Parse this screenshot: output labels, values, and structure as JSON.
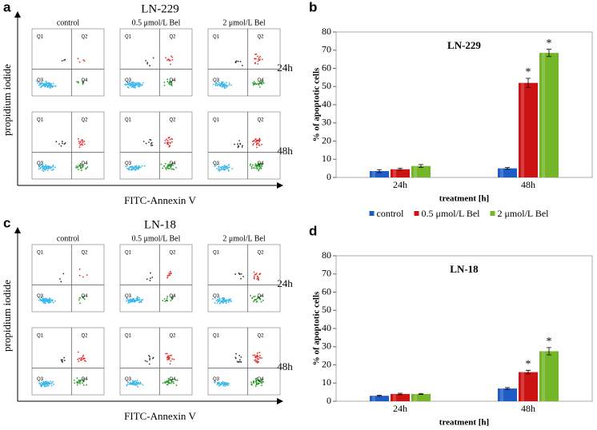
{
  "panels": [
    {
      "letter": "a",
      "title": "LN-229",
      "columns": [
        "control",
        "0.5 μmol/L Bel",
        "2 μmol/L Bel"
      ],
      "rows": [
        "24h",
        "48h"
      ],
      "y_label": "propidium iodide",
      "x_label": "FITC-Annexin V",
      "quadrants": [
        "Q1",
        "Q2",
        "Q3",
        "Q4"
      ]
    },
    {
      "letter": "c",
      "title": "LN-18",
      "columns": [
        "control",
        "0.5 μmol/L Bel",
        "2 μmol/L Bel"
      ],
      "rows": [
        "24h",
        "48h"
      ],
      "y_label": "propidium iodide",
      "x_label": "FITC-Annexin V",
      "quadrants": [
        "Q1",
        "Q2",
        "Q3",
        "Q4"
      ]
    }
  ],
  "chart_data": [
    {
      "type": "bar",
      "letter": "b",
      "title": "LN-229",
      "categories": [
        "24h",
        "48h"
      ],
      "series": [
        {
          "name": "control",
          "color": "#1f5cc4",
          "values": [
            3.5,
            5
          ],
          "errors": [
            0.8,
            0.5
          ]
        },
        {
          "name": "0.5 μmol/L Bel",
          "color": "#cc1414",
          "values": [
            4.5,
            52
          ],
          "errors": [
            0.5,
            2.5
          ]
        },
        {
          "name": "2 μmol/L Bel",
          "color": "#74b52a",
          "values": [
            6.3,
            68.5
          ],
          "errors": [
            0.8,
            2
          ]
        }
      ],
      "annotations": [
        {
          "text": "*",
          "series": 1,
          "category": 1
        },
        {
          "text": "*",
          "series": 2,
          "category": 1
        }
      ],
      "y_label": "% of apoptotic cells",
      "x_label": "treatment [h]",
      "ylim": [
        0,
        80
      ],
      "yticks": [
        0,
        10,
        20,
        30,
        40,
        50,
        60,
        70,
        80
      ],
      "legend": "bottom"
    },
    {
      "type": "bar",
      "letter": "d",
      "title": "LN-18",
      "categories": [
        "24h",
        "48h"
      ],
      "series": [
        {
          "name": "control",
          "color": "#1f5cc4",
          "values": [
            3,
            7
          ],
          "errors": [
            0.3,
            0.5
          ]
        },
        {
          "name": "0.5 μmol/L Bel",
          "color": "#cc1414",
          "values": [
            4,
            16
          ],
          "errors": [
            0.4,
            1
          ]
        },
        {
          "name": "2μmol/L Bel",
          "color": "#74b52a",
          "values": [
            4,
            27.5
          ],
          "errors": [
            0.3,
            2
          ]
        }
      ],
      "annotations": [
        {
          "text": "*",
          "series": 1,
          "category": 1
        },
        {
          "text": "*",
          "series": 2,
          "category": 1
        }
      ],
      "y_label": "% of apoptotic cells",
      "x_label": "treatment [h]",
      "ylim": [
        0,
        80
      ],
      "yticks": [
        0,
        10,
        20,
        30,
        40,
        50,
        60,
        70,
        80
      ],
      "legend": "bottom"
    }
  ]
}
